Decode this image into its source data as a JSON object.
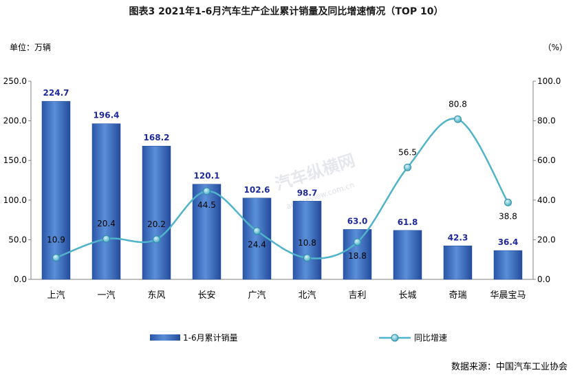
{
  "chart_data": {
    "type": "bar",
    "title": "图表3    2021年1-6月汽车生产企业累计销量及同比增速情况（TOP 10）",
    "left_unit": "单位：万辆",
    "right_unit": "（%）",
    "categories": [
      "上汽",
      "一汽",
      "东风",
      "长安",
      "广汽",
      "北汽",
      "吉利",
      "长城",
      "奇瑞",
      "华晨宝马"
    ],
    "series": [
      {
        "name": "1-6月累计销量",
        "type": "bar",
        "axis": "left",
        "color": "#3a6fc0",
        "values": [
          224.7,
          196.4,
          168.2,
          120.1,
          102.6,
          98.7,
          63.0,
          61.8,
          42.3,
          36.4
        ],
        "labels": [
          "224.7",
          "196.4",
          "168.2",
          "120.1",
          "102.6",
          "98.7",
          "63.0",
          "61.8",
          "42.3",
          "36.4"
        ]
      },
      {
        "name": "同比增速",
        "type": "line",
        "axis": "right",
        "color": "#4fb3c9",
        "values": [
          10.9,
          20.4,
          20.2,
          44.5,
          24.4,
          10.8,
          18.8,
          56.5,
          80.8,
          38.8
        ],
        "labels": [
          "10.9",
          "20.4",
          "20.2",
          "44.5",
          "24.4",
          "10.8",
          "18.8",
          "56.5",
          "80.8",
          "38.8"
        ]
      }
    ],
    "y_left": {
      "min": 0,
      "max": 250,
      "ticks": [
        "0.0",
        "50.0",
        "100.0",
        "150.0",
        "200.0",
        "250.0"
      ],
      "tick_values": [
        0,
        50,
        100,
        150,
        200,
        250
      ]
    },
    "y_right": {
      "min": 0,
      "max": 100,
      "ticks": [
        "0.0",
        "20.0",
        "40.0",
        "60.0",
        "80.0",
        "100.0"
      ],
      "tick_values": [
        0,
        20,
        40,
        60,
        80,
        100
      ]
    },
    "grid": false,
    "legend_position": "bottom",
    "source": "数据来源：中国汽车工业协会",
    "watermark": "汽车纵横网",
    "watermark_sub": "autoreview.com.cn"
  }
}
